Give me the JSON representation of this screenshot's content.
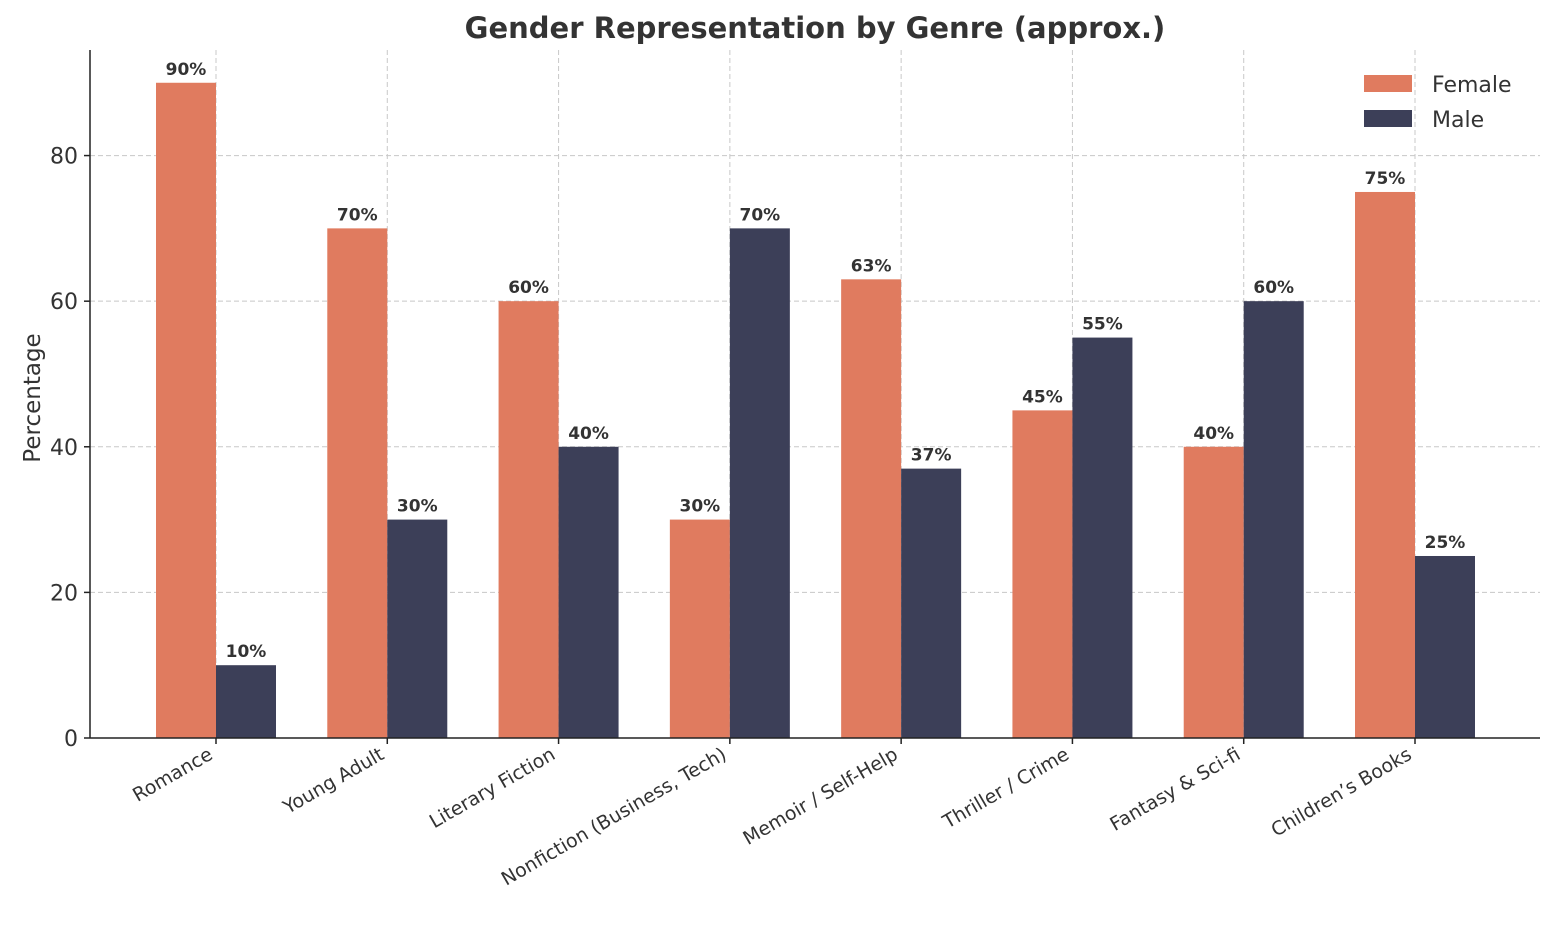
{
  "chart_data": {
    "type": "bar",
    "title": "Gender Representation by Genre (approx.)",
    "xlabel": "",
    "ylabel": "Percentage",
    "ylim": [
      0,
      94.5
    ],
    "yticks": [
      0,
      20,
      40,
      60,
      80
    ],
    "grid": true,
    "legend_position": "top-right",
    "categories": [
      "Romance",
      "Young Adult",
      "Literary Fiction",
      "Nonfiction (Business, Tech)",
      "Memoir / Self-Help",
      "Thriller / Crime",
      "Fantasy & Sci-fi",
      "Children’s Books"
    ],
    "series": [
      {
        "name": "Female",
        "color": "#E07B5F",
        "values": [
          90,
          70,
          60,
          30,
          63,
          45,
          40,
          75
        ]
      },
      {
        "name": "Male",
        "color": "#3C3F58",
        "values": [
          10,
          30,
          40,
          70,
          37,
          55,
          60,
          25
        ]
      }
    ],
    "data_label_suffix": "%"
  }
}
